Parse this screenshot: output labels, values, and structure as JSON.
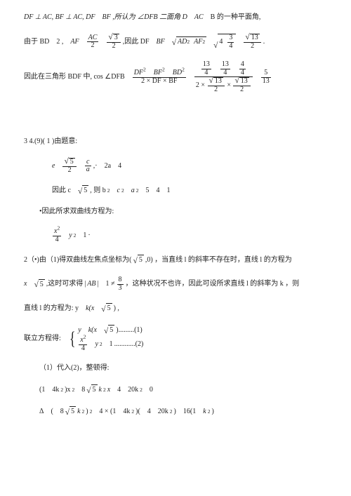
{
  "colors": {
    "text": "#222222",
    "bg": "#ffffff"
  },
  "line1": {
    "a": "DF ⊥ AC, BF ⊥ AC, DF",
    "b": "BF ,所认为 ∠DFB 二面角 D",
    "c": "AC",
    "d": "B 的一种平面角,"
  },
  "line2": {
    "a": "由于 BD",
    "b": "2 ,",
    "c": "AF",
    "ac": "AC",
    "two_a": "2",
    "root3": "3",
    "two_b": "2",
    "inthus": ",因此 DF",
    "bf": "BF",
    "ad2": "AD",
    "af2": "AF",
    "four": "4",
    "three": "3",
    "four_b": "4",
    "root13": "13",
    "two_c": "2",
    "dot": "."
  },
  "line3": {
    "a": "因此在三角形 BDF 中, cos ∠DFB",
    "df2": "DF",
    "bf2": "BF",
    "bd2": "BD",
    "denA": "2 × DF × BF",
    "n1": "13",
    "d1": "4",
    "n2": "13",
    "d2": "4",
    "n3": "4",
    "d3": "4",
    "r13a": "13",
    "two_a": "2",
    "r13b": "13",
    "two_b": "2",
    "five": "5",
    "thirteen": "13"
  },
  "sec34": "3 4.(9)( 1 )由题意:",
  "eq_e": {
    "e": "e",
    "r5": "5",
    "two": "2",
    "c": "c",
    "a": "a",
    "tail": "2a",
    "four": "4"
  },
  "eq_c": {
    "pre": "因此 c",
    "r5": "5",
    "mid": ", 则 b",
    "c2": "c",
    "a2": "a",
    "five": "5",
    "four": "4",
    "one": "1"
  },
  "eq_curve_label": "•因此所求双曲线方程为:",
  "eq_curve": {
    "x2": "x",
    "four": "4",
    "y2": "y",
    "one": "1"
  },
  "part2a": {
    "pre": "2（•)由（1)得双曲线左焦点坐标为(",
    "r5": "5",
    "mid": ",0) ，当直线 l 的斜率不存在时，直线 l 的方程为"
  },
  "part2b": {
    "x": "x",
    "r5": "5",
    "mid": ",这时可求得",
    "abseg": "AB",
    "one": "1 ≠",
    "eight": "8",
    "three": "3",
    "tail": "，这种状况不也许，因此可设所求直线 l 的斜率为 k ，则"
  },
  "lineL": {
    "pre": "直线 l 的方程为: y",
    "k": "k(x",
    "r5": "5",
    "end": ") ,"
  },
  "sys_label": "联立方程得:",
  "sys1": {
    "y": "y",
    "k": "k(x",
    "r5": "5",
    "dots": ").........(1)"
  },
  "sys2": {
    "x2": "x",
    "four": "4",
    "y2": "y",
    "one": "1",
    "dots": "............(2)"
  },
  "subst": "（1）代入(2)，整顿得:",
  "poly": {
    "a": "(1",
    "b": "4k",
    "c": ")x",
    "d": "8",
    "r5a": "5",
    "e": "k",
    "f": "x",
    "g": "4",
    "h": "20k",
    "i": "0"
  },
  "delta": {
    "D": "Δ",
    "a": "(",
    "b": "8",
    "r5": "5",
    "c": "k",
    "d": ")",
    "e": "4 × (1",
    "f": "4k",
    "g": ")(",
    "h": "4",
    "i": "20k",
    "j": ")",
    "k": "16(1",
    "l": "k",
    "m": ")"
  }
}
